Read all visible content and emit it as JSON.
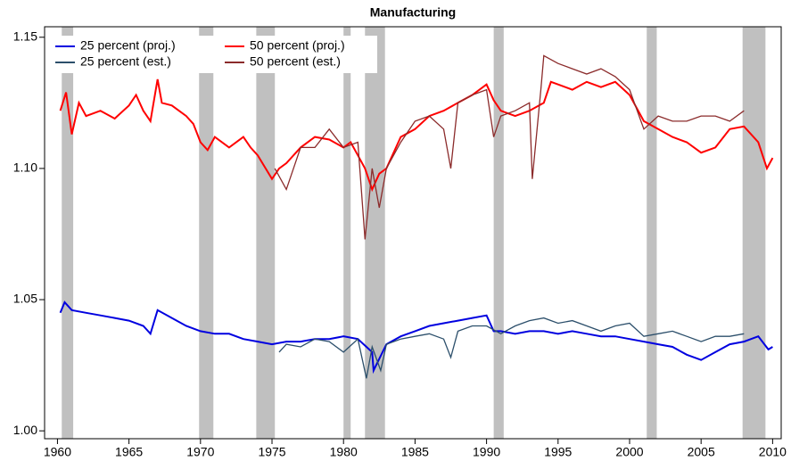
{
  "chart_data": {
    "type": "line",
    "title": "Manufacturing",
    "xlim": [
      1959.1,
      2010.6
    ],
    "xticks": [
      1960,
      1965,
      1970,
      1975,
      1980,
      1985,
      1990,
      1995,
      2000,
      2005,
      2010
    ],
    "ylim": [
      0.997,
      1.154
    ],
    "yticks": [
      {
        "value": 1.0,
        "label": "1.00"
      },
      {
        "value": 1.05,
        "label": "1.05"
      },
      {
        "value": 1.1,
        "label": "1.10"
      },
      {
        "value": 1.15,
        "label": "1.15"
      }
    ],
    "shaded_regions": [
      [
        1960.3,
        1961.1
      ],
      [
        1969.9,
        1970.9
      ],
      [
        1973.9,
        1975.2
      ],
      [
        1980.0,
        1980.5
      ],
      [
        1981.5,
        1982.9
      ],
      [
        1990.5,
        1991.2
      ],
      [
        2001.2,
        2001.9
      ],
      [
        2007.9,
        2009.5
      ]
    ],
    "shade_color": "#c0c0c0",
    "series": [
      {
        "name": "25 percent (proj.)",
        "color": "#0000e0",
        "x": [
          1960.2,
          1960.5,
          1961,
          1962,
          1963,
          1964,
          1965,
          1966,
          1966.5,
          1967,
          1968,
          1969,
          1970,
          1971,
          1972,
          1973,
          1974,
          1975,
          1976,
          1977,
          1978,
          1979,
          1980,
          1981,
          1982,
          1982.1,
          1983,
          1984,
          1985,
          1986,
          1987,
          1988,
          1989,
          1990,
          1990.5,
          1991,
          1992,
          1993,
          1994,
          1995,
          1996,
          1997,
          1998,
          1999,
          2000,
          2001,
          2002,
          2003,
          2004,
          2005,
          2006,
          2007,
          2008,
          2009,
          2009.7,
          2010
        ],
        "values": [
          1.045,
          1.049,
          1.046,
          1.045,
          1.044,
          1.043,
          1.042,
          1.04,
          1.037,
          1.046,
          1.043,
          1.04,
          1.038,
          1.037,
          1.037,
          1.035,
          1.034,
          1.033,
          1.034,
          1.034,
          1.035,
          1.035,
          1.036,
          1.035,
          1.03,
          1.023,
          1.033,
          1.036,
          1.038,
          1.04,
          1.041,
          1.042,
          1.043,
          1.044,
          1.038,
          1.038,
          1.037,
          1.038,
          1.038,
          1.037,
          1.038,
          1.037,
          1.036,
          1.036,
          1.035,
          1.034,
          1.033,
          1.032,
          1.029,
          1.027,
          1.03,
          1.033,
          1.034,
          1.036,
          1.031,
          1.032
        ]
      },
      {
        "name": "25 percent (est.)",
        "color": "#2c4f6b",
        "x": [
          1975.5,
          1976,
          1977,
          1978,
          1979,
          1980,
          1981,
          1981.6,
          1982,
          1982.6,
          1983,
          1984,
          1985,
          1986,
          1987,
          1987.5,
          1988,
          1989,
          1990,
          1991,
          1992,
          1993,
          1994,
          1995,
          1996,
          1997,
          1998,
          1999,
          2000,
          2001,
          2002,
          2003,
          2004,
          2005,
          2006,
          2007,
          2008
        ],
        "values": [
          1.03,
          1.033,
          1.032,
          1.035,
          1.034,
          1.03,
          1.035,
          1.02,
          1.032,
          1.023,
          1.033,
          1.035,
          1.036,
          1.037,
          1.035,
          1.028,
          1.038,
          1.04,
          1.04,
          1.037,
          1.04,
          1.042,
          1.043,
          1.041,
          1.042,
          1.04,
          1.038,
          1.04,
          1.041,
          1.036,
          1.037,
          1.038,
          1.036,
          1.034,
          1.036,
          1.036,
          1.037
        ]
      },
      {
        "name": "50 percent (proj.)",
        "color": "#ff0000",
        "x": [
          1960.2,
          1960.6,
          1961,
          1961.5,
          1962,
          1963,
          1964,
          1965,
          1965.5,
          1966,
          1966.5,
          1967,
          1967.3,
          1968,
          1969,
          1969.5,
          1970,
          1970.5,
          1971,
          1972,
          1973,
          1973.5,
          1974,
          1975,
          1975.5,
          1976,
          1977,
          1978,
          1979,
          1980,
          1980.5,
          1981,
          1981.5,
          1982,
          1982.5,
          1983,
          1984,
          1985,
          1986,
          1987,
          1988,
          1989,
          1990,
          1990.5,
          1991,
          1992,
          1993,
          1994,
          1994.5,
          1995,
          1996,
          1997,
          1998,
          1999,
          2000,
          2000.5,
          2001,
          2002,
          2003,
          2004,
          2005,
          2006,
          2007,
          2008,
          2009,
          2009.6,
          2010
        ],
        "values": [
          1.122,
          1.129,
          1.113,
          1.125,
          1.12,
          1.122,
          1.119,
          1.124,
          1.128,
          1.122,
          1.118,
          1.134,
          1.125,
          1.124,
          1.12,
          1.117,
          1.11,
          1.107,
          1.112,
          1.108,
          1.112,
          1.108,
          1.105,
          1.096,
          1.1,
          1.102,
          1.108,
          1.112,
          1.111,
          1.108,
          1.11,
          1.105,
          1.1,
          1.092,
          1.098,
          1.1,
          1.112,
          1.115,
          1.12,
          1.122,
          1.125,
          1.128,
          1.132,
          1.126,
          1.122,
          1.12,
          1.122,
          1.125,
          1.133,
          1.132,
          1.13,
          1.133,
          1.131,
          1.133,
          1.128,
          1.123,
          1.118,
          1.115,
          1.112,
          1.11,
          1.106,
          1.108,
          1.115,
          1.116,
          1.11,
          1.1,
          1.104
        ]
      },
      {
        "name": "50 percent (est.)",
        "color": "#8b2b2b",
        "x": [
          1975.2,
          1976,
          1976.5,
          1977,
          1978,
          1979,
          1980,
          1981,
          1981.5,
          1982,
          1982.5,
          1983,
          1984,
          1985,
          1986,
          1987,
          1987.5,
          1988,
          1989,
          1990,
          1990.5,
          1991,
          1992,
          1993,
          1993.2,
          1993.8,
          1994,
          1995,
          1996,
          1997,
          1998,
          1999,
          2000,
          2001,
          2002,
          2003,
          2004,
          2005,
          2006,
          2007,
          2008
        ],
        "values": [
          1.1,
          1.092,
          1.1,
          1.108,
          1.108,
          1.115,
          1.108,
          1.11,
          1.073,
          1.1,
          1.085,
          1.1,
          1.11,
          1.118,
          1.12,
          1.115,
          1.1,
          1.125,
          1.128,
          1.13,
          1.112,
          1.12,
          1.122,
          1.125,
          1.096,
          1.13,
          1.143,
          1.14,
          1.138,
          1.136,
          1.138,
          1.135,
          1.13,
          1.115,
          1.12,
          1.118,
          1.118,
          1.12,
          1.12,
          1.118,
          1.122
        ]
      }
    ]
  }
}
